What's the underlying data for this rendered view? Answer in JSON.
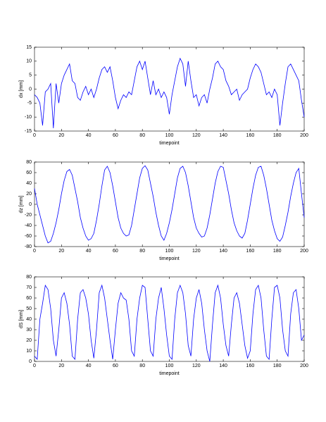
{
  "chart_data": [
    {
      "type": "line",
      "xlabel": "timepoint",
      "ylabel": "dx [mm]",
      "color": "#0000ff",
      "x": [
        0,
        2,
        4,
        6,
        8,
        10,
        12,
        14,
        16,
        18,
        20,
        22,
        24,
        26,
        28,
        30,
        32,
        34,
        36,
        38,
        40,
        42,
        44,
        46,
        48,
        50,
        52,
        54,
        56,
        58,
        60,
        62,
        64,
        66,
        68,
        70,
        72,
        74,
        76,
        78,
        80,
        82,
        84,
        86,
        88,
        90,
        92,
        94,
        96,
        98,
        100,
        102,
        104,
        106,
        108,
        110,
        112,
        114,
        116,
        118,
        120,
        122,
        124,
        126,
        128,
        130,
        132,
        134,
        136,
        138,
        140,
        142,
        144,
        146,
        148,
        150,
        152,
        154,
        156,
        158,
        160,
        162,
        164,
        166,
        168,
        170,
        172,
        174,
        176,
        178,
        180,
        182,
        184,
        186,
        188,
        190,
        192,
        194,
        196,
        198,
        200
      ],
      "values": [
        -2,
        -3,
        -5,
        -13,
        -1,
        0,
        2,
        -14,
        2,
        -5,
        2,
        5,
        7,
        9,
        3,
        2,
        -3,
        -4,
        -1,
        1,
        -2,
        0,
        -3,
        0,
        4,
        7,
        8,
        6,
        8,
        3,
        -3,
        -7,
        -4,
        -2,
        -3,
        -1,
        -2,
        3,
        8,
        10,
        7,
        10,
        4,
        -2,
        3,
        -2,
        0,
        -3,
        -1,
        -3,
        -9,
        -2,
        3,
        8,
        11,
        9,
        1,
        10,
        3,
        -3,
        -2,
        -6,
        -3,
        -2,
        -5,
        0,
        4,
        9,
        10,
        8,
        7,
        3,
        1,
        -2,
        -1,
        0,
        -4,
        -2,
        -1,
        0,
        4,
        7,
        9,
        8,
        6,
        2,
        -2,
        -1,
        -3,
        0,
        -2,
        -13,
        -5,
        2,
        8,
        9,
        7,
        5,
        3,
        -4,
        -10
      ],
      "xlim": [
        0,
        200
      ],
      "ylim": [
        -15,
        15
      ],
      "xticks": [
        0,
        20,
        40,
        60,
        80,
        100,
        120,
        140,
        160,
        180,
        200
      ],
      "yticks": [
        -15,
        -10,
        -5,
        0,
        5,
        10,
        15
      ]
    },
    {
      "type": "line",
      "xlabel": "timepoint",
      "ylabel": "dz [mm]",
      "color": "#0000ff",
      "x": [
        0,
        2,
        4,
        6,
        8,
        10,
        12,
        14,
        16,
        18,
        20,
        22,
        24,
        26,
        28,
        30,
        32,
        34,
        36,
        38,
        40,
        42,
        44,
        46,
        48,
        50,
        52,
        54,
        56,
        58,
        60,
        62,
        64,
        66,
        68,
        70,
        72,
        74,
        76,
        78,
        80,
        82,
        84,
        86,
        88,
        90,
        92,
        94,
        96,
        98,
        100,
        102,
        104,
        106,
        108,
        110,
        112,
        114,
        116,
        118,
        120,
        122,
        124,
        126,
        128,
        130,
        132,
        134,
        136,
        138,
        140,
        142,
        144,
        146,
        148,
        150,
        152,
        154,
        156,
        158,
        160,
        162,
        164,
        166,
        168,
        170,
        172,
        174,
        176,
        178,
        180,
        182,
        184,
        186,
        188,
        190,
        192,
        194,
        196,
        198,
        200
      ],
      "values": [
        30,
        0,
        -20,
        -40,
        -60,
        -73,
        -70,
        -55,
        -35,
        -10,
        20,
        45,
        62,
        66,
        55,
        30,
        5,
        -25,
        -45,
        -60,
        -68,
        -65,
        -55,
        -30,
        0,
        35,
        65,
        72,
        60,
        35,
        5,
        -25,
        -45,
        -55,
        -60,
        -58,
        -40,
        -10,
        20,
        50,
        68,
        73,
        65,
        40,
        15,
        -15,
        -40,
        -60,
        -68,
        -55,
        -35,
        -10,
        20,
        50,
        68,
        72,
        60,
        35,
        5,
        -25,
        -45,
        -55,
        -62,
        -60,
        -45,
        -20,
        10,
        40,
        62,
        72,
        70,
        45,
        20,
        -10,
        -35,
        -50,
        -60,
        -64,
        -55,
        -30,
        0,
        30,
        55,
        70,
        72,
        55,
        30,
        0,
        -30,
        -50,
        -65,
        -70,
        -62,
        -40,
        -15,
        15,
        40,
        60,
        68,
        20,
        -25
      ],
      "xlim": [
        0,
        200
      ],
      "ylim": [
        -80,
        80
      ],
      "xticks": [
        0,
        20,
        40,
        60,
        80,
        100,
        120,
        140,
        160,
        180,
        200
      ],
      "yticks": [
        -80,
        -60,
        -40,
        -20,
        0,
        20,
        40,
        60,
        80
      ]
    },
    {
      "type": "line",
      "xlabel": "timepoint",
      "ylabel": "dS [mm]",
      "color": "#0000ff",
      "x": [
        0,
        2,
        4,
        6,
        8,
        10,
        12,
        14,
        16,
        18,
        20,
        22,
        24,
        26,
        28,
        30,
        32,
        34,
        36,
        38,
        40,
        42,
        44,
        46,
        48,
        50,
        52,
        54,
        56,
        58,
        60,
        62,
        64,
        66,
        68,
        70,
        72,
        74,
        76,
        78,
        80,
        82,
        84,
        86,
        88,
        90,
        92,
        94,
        96,
        98,
        100,
        102,
        104,
        106,
        108,
        110,
        112,
        114,
        116,
        118,
        120,
        122,
        124,
        126,
        128,
        130,
        132,
        134,
        136,
        138,
        140,
        142,
        144,
        146,
        148,
        150,
        152,
        154,
        156,
        158,
        160,
        162,
        164,
        166,
        168,
        170,
        172,
        174,
        176,
        178,
        180,
        182,
        184,
        186,
        188,
        190,
        192,
        194,
        196,
        198,
        200
      ],
      "values": [
        5,
        2,
        40,
        55,
        72,
        68,
        50,
        20,
        5,
        30,
        60,
        65,
        55,
        35,
        5,
        2,
        40,
        65,
        68,
        60,
        45,
        20,
        3,
        30,
        65,
        72,
        60,
        40,
        20,
        2,
        30,
        55,
        65,
        60,
        58,
        40,
        10,
        5,
        40,
        60,
        72,
        70,
        40,
        10,
        5,
        40,
        60,
        70,
        50,
        25,
        5,
        2,
        40,
        65,
        72,
        65,
        45,
        15,
        5,
        40,
        60,
        68,
        55,
        30,
        10,
        0,
        35,
        65,
        72,
        60,
        35,
        15,
        5,
        35,
        60,
        65,
        55,
        35,
        15,
        3,
        10,
        45,
        68,
        72,
        60,
        30,
        5,
        2,
        40,
        70,
        72,
        60,
        30,
        10,
        5,
        45,
        65,
        68,
        50,
        20,
        25
      ],
      "xlim": [
        0,
        200
      ],
      "ylim": [
        0,
        80
      ],
      "xticks": [
        0,
        20,
        40,
        60,
        80,
        100,
        120,
        140,
        160,
        180,
        200
      ],
      "yticks": [
        0,
        10,
        20,
        30,
        40,
        50,
        60,
        70,
        80
      ]
    }
  ]
}
